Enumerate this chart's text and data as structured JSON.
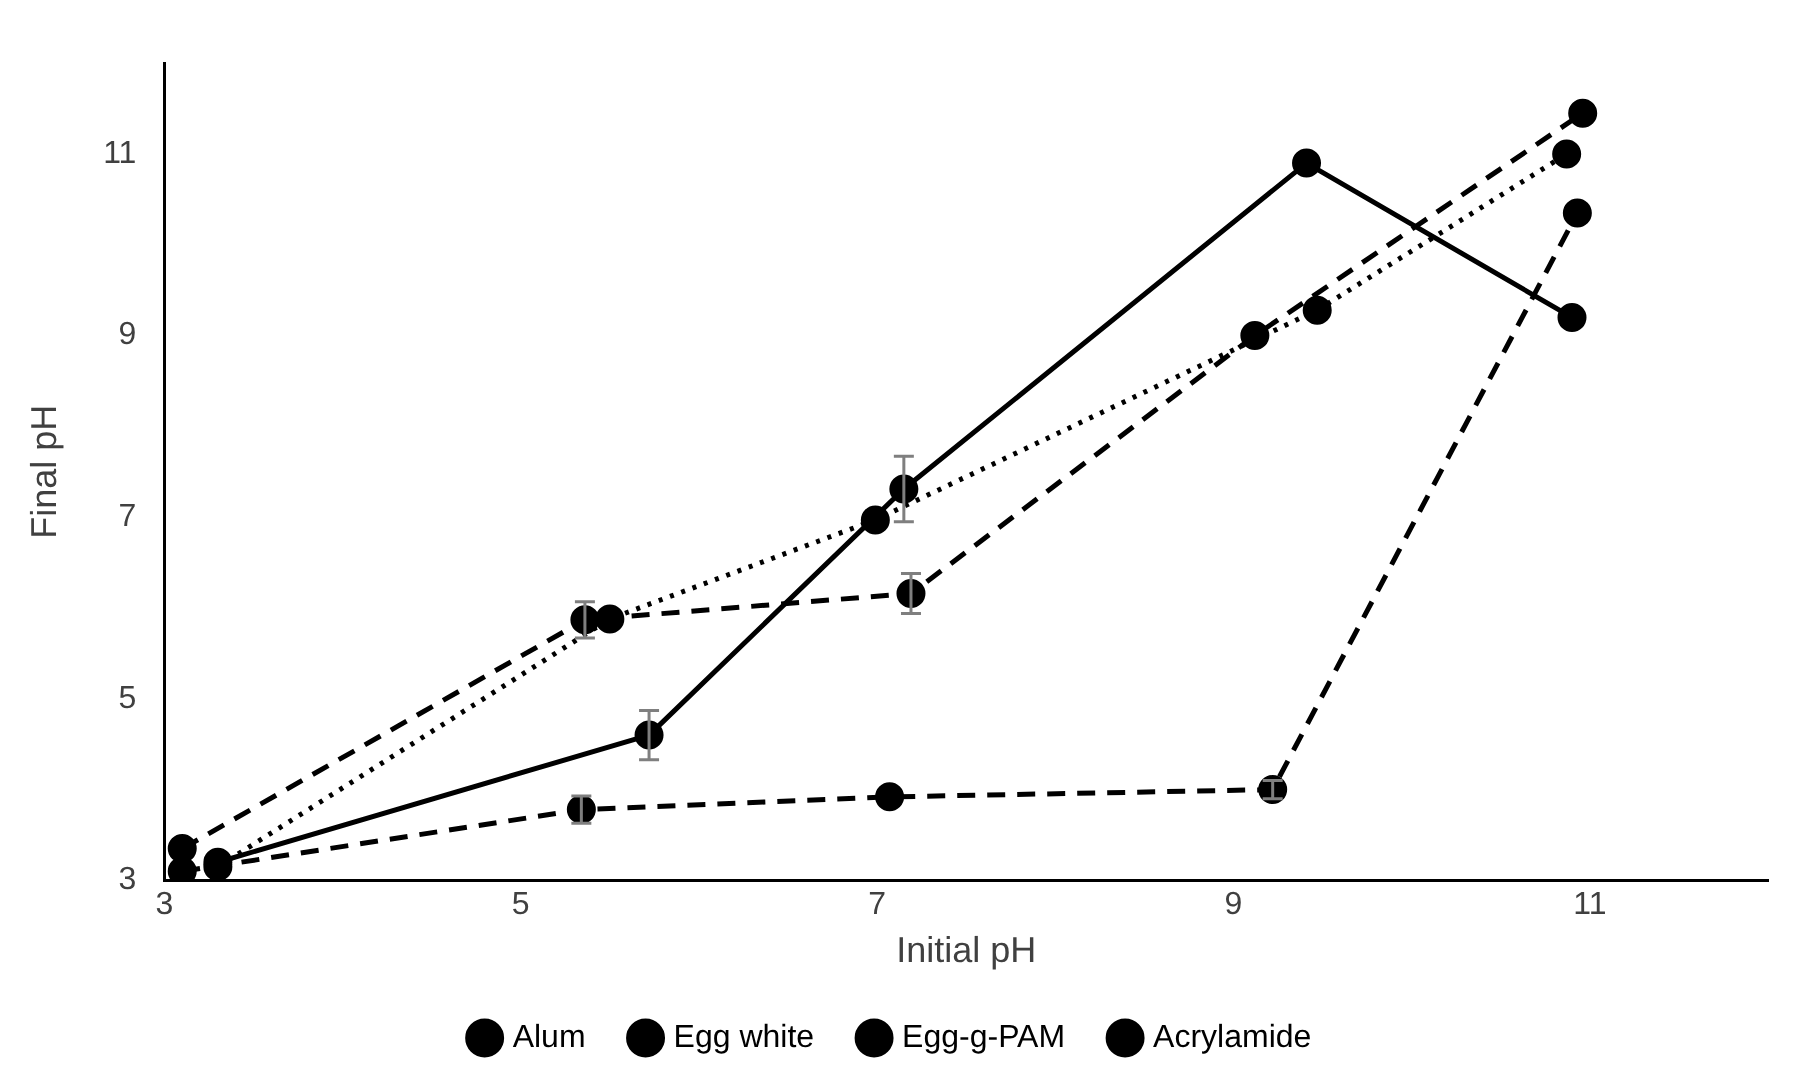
{
  "chart_data": {
    "type": "line",
    "xlabel": "Initial pH",
    "ylabel": "Final pH",
    "xlim": [
      3,
      12
    ],
    "xticks": [
      3,
      5,
      7,
      9,
      11
    ],
    "ylim": [
      3,
      12
    ],
    "yticks": [
      3,
      5,
      7,
      9,
      11
    ],
    "grid": false,
    "legend": "bottom",
    "marker": "circle",
    "series": [
      {
        "name": "Alum",
        "color": "#000000",
        "line_style": "dashed",
        "x": [
          3.1,
          5.34,
          7.07,
          9.22,
          10.93
        ],
        "values": [
          3.1,
          3.78,
          3.92,
          4.0,
          10.35
        ],
        "errors": [
          null,
          0.15,
          null,
          0.1,
          null
        ]
      },
      {
        "name": "Egg white",
        "color": "#000000",
        "line_style": "dotted",
        "x": [
          3.3,
          5.5,
          6.99,
          9.47,
          10.87
        ],
        "values": [
          3.15,
          5.88,
          6.97,
          9.28,
          11.0
        ],
        "errors": [
          null,
          null,
          null,
          null,
          null
        ]
      },
      {
        "name": "Egg-g-PAM",
        "color": "#000000",
        "line_style": "solid",
        "x": [
          3.3,
          5.72,
          7.15,
          9.41,
          10.9
        ],
        "values": [
          3.2,
          4.6,
          7.31,
          10.9,
          9.2
        ],
        "errors": [
          null,
          0.27,
          0.36,
          null,
          null
        ]
      },
      {
        "name": "Acrylamide",
        "color": "#000000",
        "line_style": "dashed",
        "x": [
          3.1,
          5.36,
          7.19,
          9.12,
          10.96
        ],
        "values": [
          3.35,
          5.87,
          6.16,
          9.0,
          11.45
        ],
        "errors": [
          null,
          0.2,
          0.22,
          null,
          null
        ]
      }
    ]
  }
}
